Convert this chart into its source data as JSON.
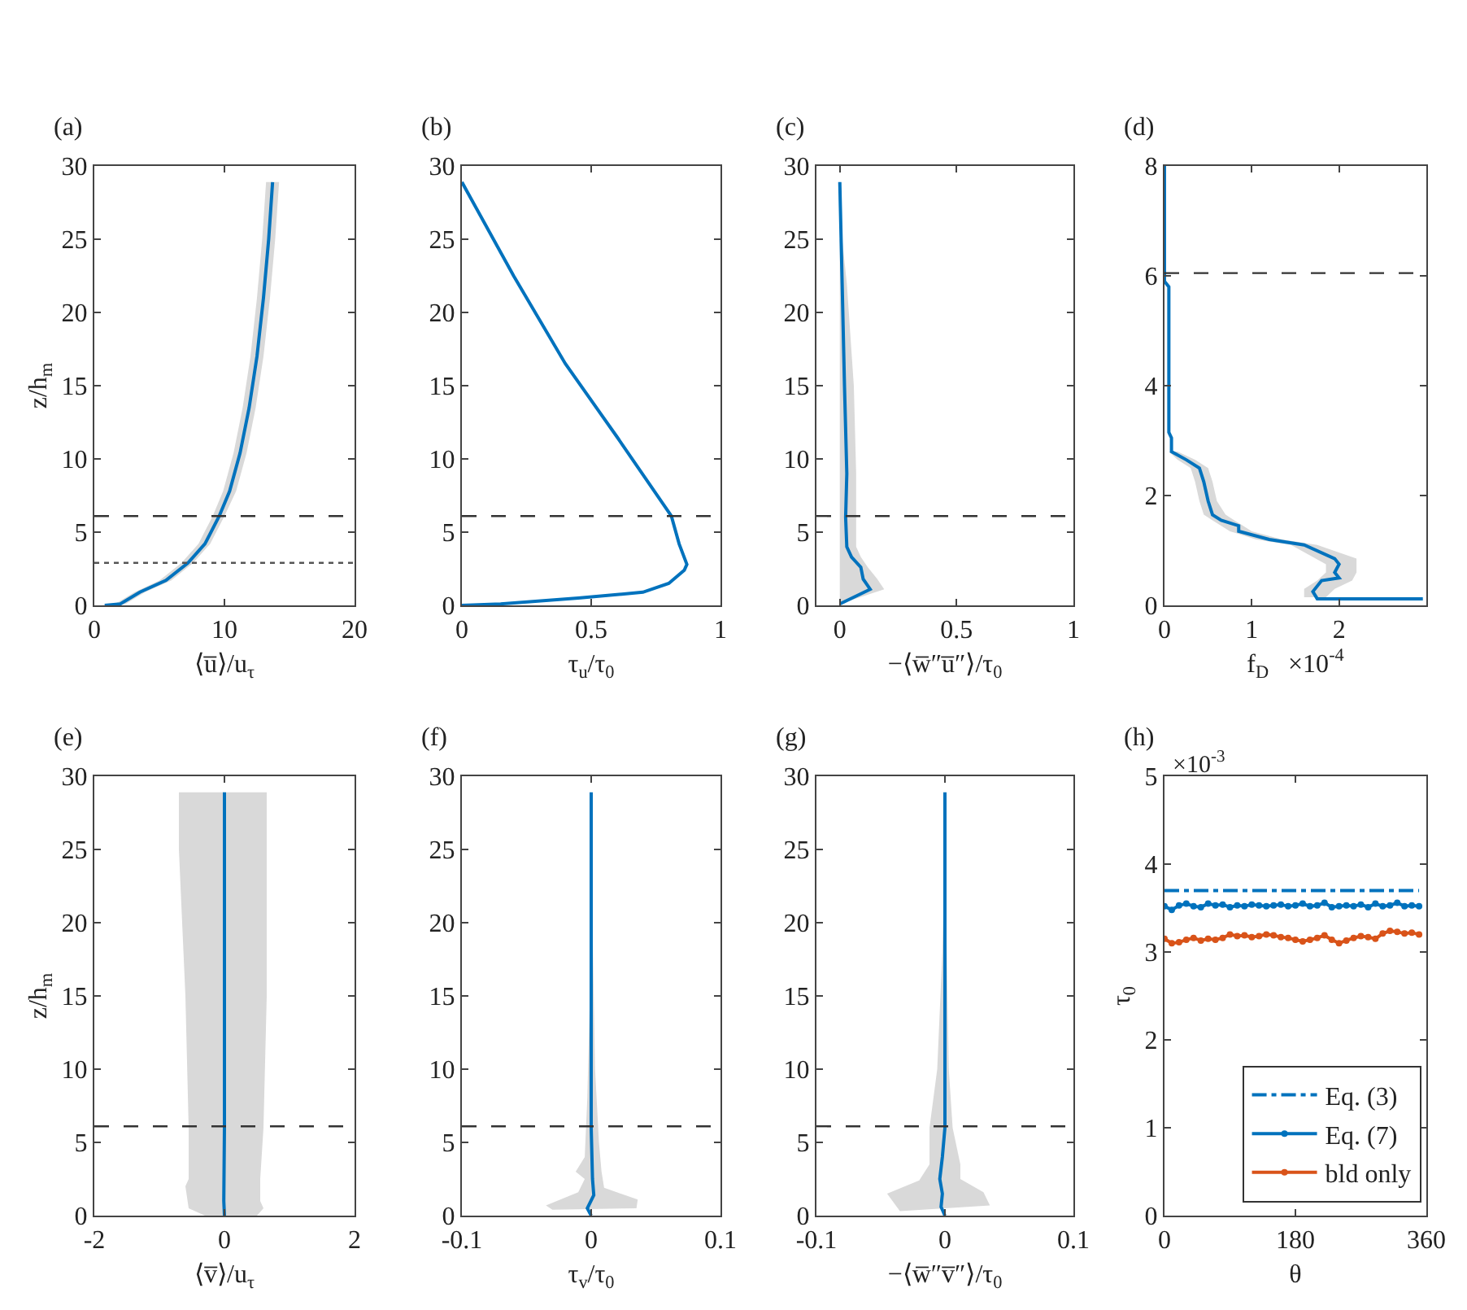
{
  "chart_data": [
    {
      "type": "line",
      "title": "(a)",
      "xlabel": "⟨u̅⟩/u$_{τ}$",
      "ylabel": "z/h$_{m}$",
      "xlim": [
        0,
        20
      ],
      "xticks": [
        0,
        10,
        20
      ],
      "ylim": [
        0,
        30
      ],
      "yticks": [
        0,
        5,
        10,
        15,
        20,
        25,
        30
      ],
      "series": [
        {
          "type": "area",
          "color": "#d9d9d9",
          "x": [
            0.5,
            1.6,
            3.1,
            5.0,
            6.7,
            8.0,
            9.1,
            9.9,
            10.7,
            11.4,
            12.0,
            12.5,
            12.9,
            13.2,
            14.2,
            13.9,
            13.5,
            13.0,
            12.4,
            11.7,
            10.9,
            10.0,
            8.9,
            7.6,
            5.9,
            3.9,
            2.4,
            1.0
          ],
          "values": [
            0,
            0.1,
            0.9,
            1.7,
            2.9,
            4.2,
            6.1,
            7.8,
            10.4,
            13.5,
            17,
            21,
            25,
            28.9,
            28.9,
            25,
            21,
            17,
            13.5,
            10.4,
            7.8,
            6.1,
            4.2,
            2.9,
            1.7,
            0.9,
            0.1,
            0
          ]
        },
        {
          "color": "#0072bd",
          "x": [
            0.8,
            2,
            3.5,
            5.5,
            7.2,
            8.5,
            9.6,
            10.4,
            11.2,
            11.9,
            12.5,
            13.0,
            13.4,
            13.7
          ],
          "values": [
            0,
            0.1,
            0.9,
            1.7,
            2.9,
            4.2,
            6.1,
            7.8,
            10.4,
            13.5,
            17,
            21,
            25,
            28.9
          ]
        }
      ],
      "ref_lines": [
        {
          "axis": "y",
          "value": 6.1,
          "line_style": "dashed",
          "color": "#333333"
        },
        {
          "axis": "y",
          "value": 2.9,
          "line_style": "dotted",
          "color": "#555555"
        }
      ]
    },
    {
      "type": "line",
      "title": "(b)",
      "xlabel": "τ$_{u}$/τ$_{0}$",
      "xlim": [
        0,
        1
      ],
      "xticks": [
        0,
        0.5,
        1
      ],
      "ylim": [
        0,
        30
      ],
      "yticks": [
        0,
        5,
        10,
        15,
        20,
        25,
        30
      ],
      "series": [
        {
          "color": "#0072bd",
          "x": [
            0,
            0.15,
            0.45,
            0.7,
            0.8,
            0.86,
            0.87,
            0.84,
            0.81,
            0.6,
            0.4,
            0.2,
            0
          ],
          "values": [
            0,
            0.1,
            0.5,
            0.9,
            1.5,
            2.4,
            2.8,
            4.2,
            6.1,
            11.5,
            16.5,
            22.5,
            28.9
          ]
        }
      ],
      "ref_lines": [
        {
          "axis": "y",
          "value": 6.1,
          "line_style": "dashed",
          "color": "#333333"
        }
      ]
    },
    {
      "type": "line",
      "title": "(c)",
      "xlabel": "−⟨w̅″u̅″⟩/τ$_{0}$",
      "xlim": [
        -0.1,
        1
      ],
      "xticks": [
        0,
        0.5,
        1
      ],
      "ylim": [
        0,
        30
      ],
      "yticks": [
        0,
        5,
        10,
        15,
        20,
        25,
        30
      ],
      "series": [
        {
          "type": "area",
          "color": "#d9d9d9",
          "x": [
            0,
            0,
            0,
            0,
            0,
            0,
            0,
            0,
            0.01,
            0.03,
            0.06,
            0.07,
            0.07,
            0.09,
            0.12,
            0.16,
            0.19
          ],
          "values": [
            0.1,
            1.1,
            1.8,
            2.6,
            3.3,
            6,
            15,
            25,
            25,
            22,
            15,
            9,
            4,
            3.3,
            2.6,
            1.8,
            1.1
          ]
        },
        {
          "color": "#0072bd",
          "x": [
            0,
            0.13,
            0.1,
            0.09,
            0.05,
            0.03,
            0.025,
            0.03,
            0.02,
            0.01,
            0
          ],
          "values": [
            0.1,
            1.1,
            1.8,
            2.6,
            3.3,
            4,
            6,
            9,
            15,
            22,
            28.9
          ]
        }
      ],
      "ref_lines": [
        {
          "axis": "y",
          "value": 6.1,
          "line_style": "dashed",
          "color": "#333333"
        }
      ]
    },
    {
      "type": "line",
      "title": "(d)",
      "xlabel": "f$_{D}$   ×10$^{-4}$",
      "xlim": [
        0,
        3
      ],
      "xticks": [
        0,
        1,
        2
      ],
      "ylim": [
        0,
        8
      ],
      "yticks": [
        0,
        2,
        4,
        6,
        8
      ],
      "series": [
        {
          "type": "area",
          "color": "#d9d9d9",
          "x": [
            1.6,
            1.6,
            1.75,
            1.85,
            1.85,
            1.45,
            1.05,
            0.75,
            0.55,
            0.45,
            0.4,
            0.35,
            0.3,
            0.15,
            0.05,
            0.15,
            0.35,
            0.5,
            0.55,
            0.6,
            0.7,
            0.8,
            1.0,
            1.35,
            1.75,
            2.2,
            2.2,
            2.15,
            1.95,
            1.85
          ],
          "values": [
            0.15,
            0.3,
            0.45,
            0.6,
            0.75,
            1.1,
            1.2,
            1.35,
            1.55,
            1.65,
            1.9,
            2.25,
            2.5,
            2.65,
            2.8,
            2.8,
            2.65,
            2.5,
            2.25,
            1.9,
            1.65,
            1.55,
            1.35,
            1.2,
            1.1,
            0.85,
            0.6,
            0.45,
            0.3,
            0.15
          ]
        },
        {
          "color": "#0072bd",
          "x": [
            2.96,
            1.75,
            1.7,
            1.8,
            2.0,
            1.95,
            2.0,
            1.95,
            1.6,
            1.2,
            0.85,
            0.85,
            0.65,
            0.55,
            0.5,
            0.45,
            0.4,
            0.25,
            0.08,
            0.08,
            0.05,
            0.05,
            0.05,
            0,
            0
          ],
          "values": [
            0.12,
            0.12,
            0.25,
            0.45,
            0.5,
            0.6,
            0.75,
            0.85,
            1.1,
            1.2,
            1.35,
            1.45,
            1.55,
            1.65,
            1.9,
            2.25,
            2.5,
            2.65,
            2.8,
            3.05,
            3.15,
            4.5,
            5.8,
            5.9,
            8
          ]
        }
      ],
      "ref_lines": [
        {
          "axis": "y",
          "value": 6.05,
          "line_style": "dashed",
          "color": "#333333"
        }
      ]
    },
    {
      "type": "line",
      "title": "(e)",
      "xlabel": "⟨v̅⟩/u$_{τ}$",
      "ylabel": "z/h$_{m}$",
      "xlim": [
        -2,
        2
      ],
      "xticks": [
        -2,
        0,
        2
      ],
      "ylim": [
        0,
        30
      ],
      "yticks": [
        0,
        5,
        10,
        15,
        20,
        25,
        30
      ],
      "series": [
        {
          "type": "area",
          "color": "#d9d9d9",
          "x": [
            -0.3,
            -0.55,
            -0.6,
            -0.55,
            -0.55,
            -0.6,
            -0.7,
            -0.7,
            0.65,
            0.65,
            0.6,
            0.55,
            0.55,
            0.6,
            0.5
          ],
          "values": [
            0,
            0.5,
            2,
            2.5,
            6,
            15,
            25,
            28.9,
            28.9,
            15,
            6,
            2.5,
            1,
            0.5,
            0
          ]
        },
        {
          "color": "#0072bd",
          "x": [
            0,
            -0.01,
            0,
            0
          ],
          "values": [
            0,
            1,
            6,
            28.9
          ]
        }
      ],
      "ref_lines": [
        {
          "axis": "y",
          "value": 6.1,
          "line_style": "dashed",
          "color": "#333333"
        }
      ]
    },
    {
      "type": "line",
      "title": "(f)",
      "xlabel": "τ$_{v}$/τ$_{0}$",
      "xlim": [
        -0.1,
        0.1
      ],
      "xticks": [
        -0.1,
        0,
        0.1
      ],
      "ylim": [
        0,
        30
      ],
      "yticks": [
        0,
        5,
        10,
        15,
        20,
        25,
        30
      ],
      "series": [
        {
          "type": "area",
          "color": "#d9d9d9",
          "x": [
            -0.03,
            -0.035,
            -0.01,
            -0.005,
            -0.012,
            -0.005,
            -0.003,
            -0.001,
            0,
            0.001,
            0.003,
            0.006,
            0.008,
            0.01,
            0.036,
            0.035
          ],
          "values": [
            0.4,
            0.7,
            1.6,
            2.5,
            3,
            4,
            8,
            15,
            25,
            20,
            10,
            5,
            3,
            1.9,
            1.1,
            0.5
          ]
        },
        {
          "color": "#0072bd",
          "x": [
            0,
            -0.003,
            0.002,
            0.001,
            0,
            0
          ],
          "values": [
            0,
            0.5,
            1.4,
            2.5,
            6,
            28.9
          ]
        }
      ],
      "ref_lines": [
        {
          "axis": "y",
          "value": 6.1,
          "line_style": "dashed",
          "color": "#333333"
        }
      ]
    },
    {
      "type": "line",
      "title": "(g)",
      "xlabel": "−⟨w̅″v̅″⟩/τ$_{0}$",
      "xlim": [
        -0.1,
        0.1
      ],
      "xticks": [
        -0.1,
        0,
        0.1
      ],
      "ylim": [
        0,
        30
      ],
      "yticks": [
        0,
        5,
        10,
        15,
        20,
        25,
        30
      ],
      "series": [
        {
          "type": "area",
          "color": "#d9d9d9",
          "x": [
            -0.035,
            -0.045,
            -0.02,
            -0.012,
            -0.012,
            -0.006,
            -0.002,
            0,
            0.003,
            0.006,
            0.012,
            0.012,
            0.03,
            0.035
          ],
          "values": [
            0.3,
            1.5,
            2.4,
            3.5,
            6,
            10,
            18,
            25,
            10,
            6,
            3.5,
            2.5,
            1.6,
            0.7
          ]
        },
        {
          "color": "#0072bd",
          "x": [
            0,
            -0.003,
            -0.002,
            -0.004,
            -0.002,
            0,
            0
          ],
          "values": [
            0,
            0.6,
            1.5,
            2.5,
            4,
            6,
            28.9
          ]
        }
      ],
      "ref_lines": [
        {
          "axis": "y",
          "value": 6.1,
          "line_style": "dashed",
          "color": "#333333"
        }
      ]
    },
    {
      "type": "line",
      "title": "(h)",
      "xlabel": "θ",
      "ylabel": "τ$_{0}$",
      "xlim": [
        0,
        360
      ],
      "xticks": [
        0,
        180,
        360
      ],
      "ylim": [
        0,
        5
      ],
      "yticks": [
        0,
        1,
        2,
        3,
        4,
        5
      ],
      "legend": "bottom right",
      "annotations": [
        "×10$^{-3}$"
      ],
      "series": [
        {
          "name": "Eq. (3)",
          "color": "#0072bd",
          "line_style": "dashdot",
          "marker": "none",
          "x": [
            0,
            350
          ],
          "values": [
            3.7,
            3.7
          ]
        },
        {
          "name": "Eq. (7)",
          "color": "#0072bd",
          "line_style": "solid",
          "marker": "circle",
          "x": [
            0,
            10,
            20,
            30,
            40,
            50,
            60,
            70,
            80,
            90,
            100,
            110,
            120,
            130,
            140,
            150,
            160,
            170,
            180,
            190,
            200,
            210,
            220,
            230,
            240,
            250,
            260,
            270,
            280,
            290,
            300,
            310,
            320,
            330,
            340,
            350
          ],
          "values": [
            3.52,
            3.48,
            3.53,
            3.55,
            3.52,
            3.51,
            3.55,
            3.53,
            3.54,
            3.51,
            3.53,
            3.52,
            3.54,
            3.53,
            3.52,
            3.53,
            3.54,
            3.52,
            3.53,
            3.55,
            3.52,
            3.53,
            3.56,
            3.51,
            3.52,
            3.53,
            3.52,
            3.54,
            3.51,
            3.55,
            3.52,
            3.53,
            3.56,
            3.52,
            3.53,
            3.52
          ]
        },
        {
          "name": "bld only",
          "color": "#d95319",
          "line_style": "solid",
          "marker": "circle",
          "x": [
            0,
            10,
            20,
            30,
            40,
            50,
            60,
            70,
            80,
            90,
            100,
            110,
            120,
            130,
            140,
            150,
            160,
            170,
            180,
            190,
            200,
            210,
            220,
            230,
            240,
            250,
            260,
            270,
            280,
            290,
            300,
            310,
            320,
            330,
            340,
            350
          ],
          "values": [
            3.15,
            3.1,
            3.11,
            3.14,
            3.16,
            3.13,
            3.15,
            3.14,
            3.16,
            3.2,
            3.18,
            3.19,
            3.17,
            3.18,
            3.2,
            3.19,
            3.17,
            3.16,
            3.14,
            3.12,
            3.14,
            3.16,
            3.19,
            3.14,
            3.1,
            3.13,
            3.16,
            3.18,
            3.17,
            3.15,
            3.21,
            3.24,
            3.23,
            3.21,
            3.22,
            3.2
          ]
        }
      ]
    }
  ]
}
